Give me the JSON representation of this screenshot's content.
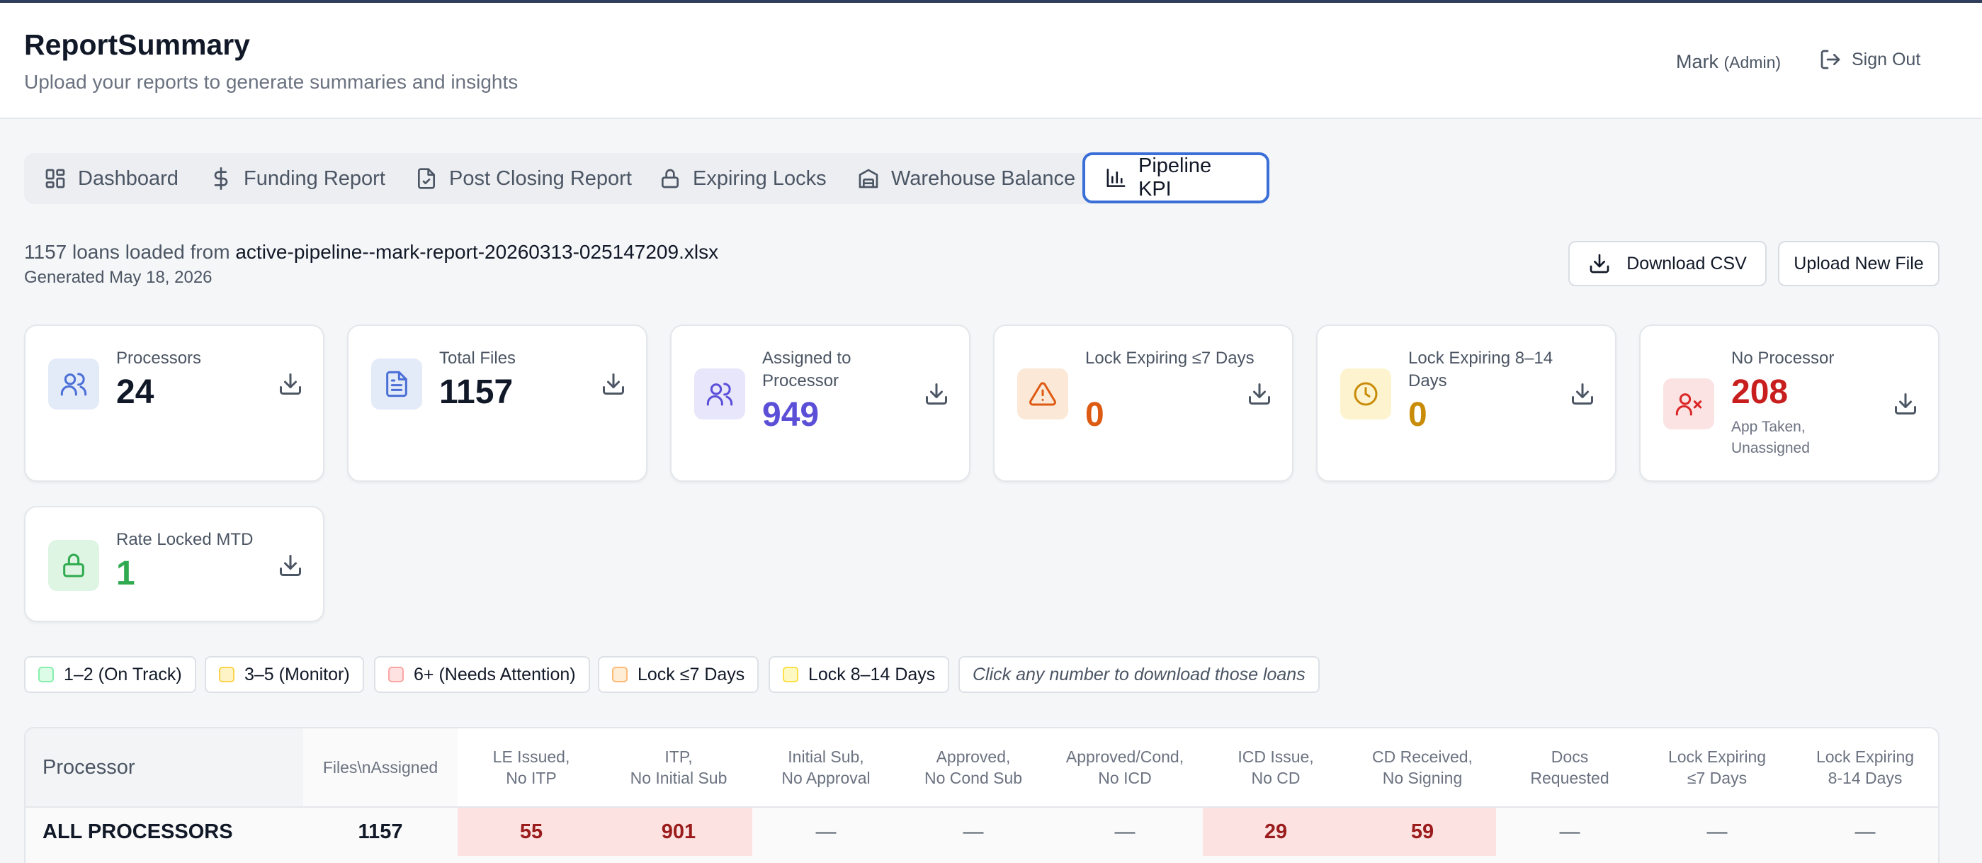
{
  "app": {
    "title": "ReportSummary",
    "subtitle": "Upload your reports to generate summaries and insights",
    "user_name": "Mark",
    "user_role": "(Admin)",
    "sign_out": "Sign Out"
  },
  "tabs": [
    {
      "label": "Dashboard",
      "icon": "dashboard-icon",
      "active": false
    },
    {
      "label": "Funding Report",
      "icon": "dollar-icon",
      "active": false
    },
    {
      "label": "Post Closing Report",
      "icon": "file-check-icon",
      "active": false
    },
    {
      "label": "Expiring Locks",
      "icon": "lock-icon",
      "active": false
    },
    {
      "label": "Warehouse Balance",
      "icon": "warehouse-icon",
      "active": false
    },
    {
      "label": "Pipeline KPI",
      "icon": "bar-chart-icon",
      "active": true
    }
  ],
  "file_info": {
    "loaded_prefix": "1157 loans loaded from",
    "filename": "active-pipeline--mark-report-20260313-025147209.xlsx",
    "generated": "Generated May 18, 2026"
  },
  "actions": {
    "download_csv": "Download CSV",
    "upload_new": "Upload New File"
  },
  "cards": [
    {
      "label": "Processors",
      "value": "24",
      "icon": "users-icon",
      "icon_bg": "#e3eaf8",
      "icon_color": "#4a6fd6",
      "value_color": "#111827"
    },
    {
      "label": "Total Files",
      "value": "1157",
      "icon": "document-icon",
      "icon_bg": "#e3eaf8",
      "icon_color": "#4a6fd6",
      "value_color": "#111827"
    },
    {
      "label": "Assigned to Processor",
      "value": "949",
      "icon": "users-icon",
      "icon_bg": "#e7e6fb",
      "icon_color": "#5b4fd8",
      "value_color": "#5b4fd8"
    },
    {
      "label": "Lock Expiring ≤7 Days",
      "value": "0",
      "icon": "warning-icon",
      "icon_bg": "#fbe8d6",
      "icon_color": "#dd5a12",
      "value_color": "#dd5a12"
    },
    {
      "label": "Lock Expiring 8–14 Days",
      "value": "0",
      "icon": "clock-icon",
      "icon_bg": "#fdf4cf",
      "icon_color": "#c98c08",
      "value_color": "#c98c08"
    },
    {
      "label": "No Processor",
      "value": "208",
      "note": "App Taken, Unassigned",
      "icon": "user-x-icon",
      "icon_bg": "#fbe3e3",
      "icon_color": "#dc2626",
      "value_color": "#c81e1e"
    },
    {
      "label": "Rate Locked MTD",
      "value": "1",
      "icon": "lock-icon",
      "icon_bg": "#ddf5e2",
      "icon_color": "#2faa4f",
      "value_color": "#2faa4f"
    }
  ],
  "legend": [
    {
      "label": "1–2 (On Track)",
      "fill": "#dcfce7",
      "border": "#86efac"
    },
    {
      "label": "3–5 (Monitor)",
      "fill": "#fef3c7",
      "border": "#fcd34d"
    },
    {
      "label": "6+ (Needs Attention)",
      "fill": "#fee2e2",
      "border": "#fca5a5"
    },
    {
      "label": "Lock ≤7 Days",
      "fill": "#ffedd5",
      "border": "#fdba74"
    },
    {
      "label": "Lock 8–14 Days",
      "fill": "#fef9c3",
      "border": "#fde047"
    }
  ],
  "legend_hint": "Click any number to download those loans",
  "table": {
    "headers": [
      "Processor",
      "Files\\nAssigned",
      "LE Issued,\nNo ITP",
      "ITP,\nNo Initial Sub",
      "Initial Sub,\nNo Approval",
      "Approved,\nNo Cond Sub",
      "Approved/Cond,\nNo ICD",
      "ICD Issue,\nNo CD",
      "CD Received,\nNo Signing",
      "Docs\nRequested",
      "Lock Expiring\n≤7 Days",
      "Lock Expiring\n8-14 Days"
    ],
    "rows": [
      {
        "cells": [
          "ALL PROCESSORS",
          "1157",
          "55",
          "901",
          "—",
          "—",
          "—",
          "29",
          "59",
          "—",
          "—",
          "—"
        ]
      }
    ]
  },
  "colors": {
    "accent": "#3b6fd8",
    "alert_fill": "#fde2e2",
    "alert_text": "#9b1c1c"
  }
}
